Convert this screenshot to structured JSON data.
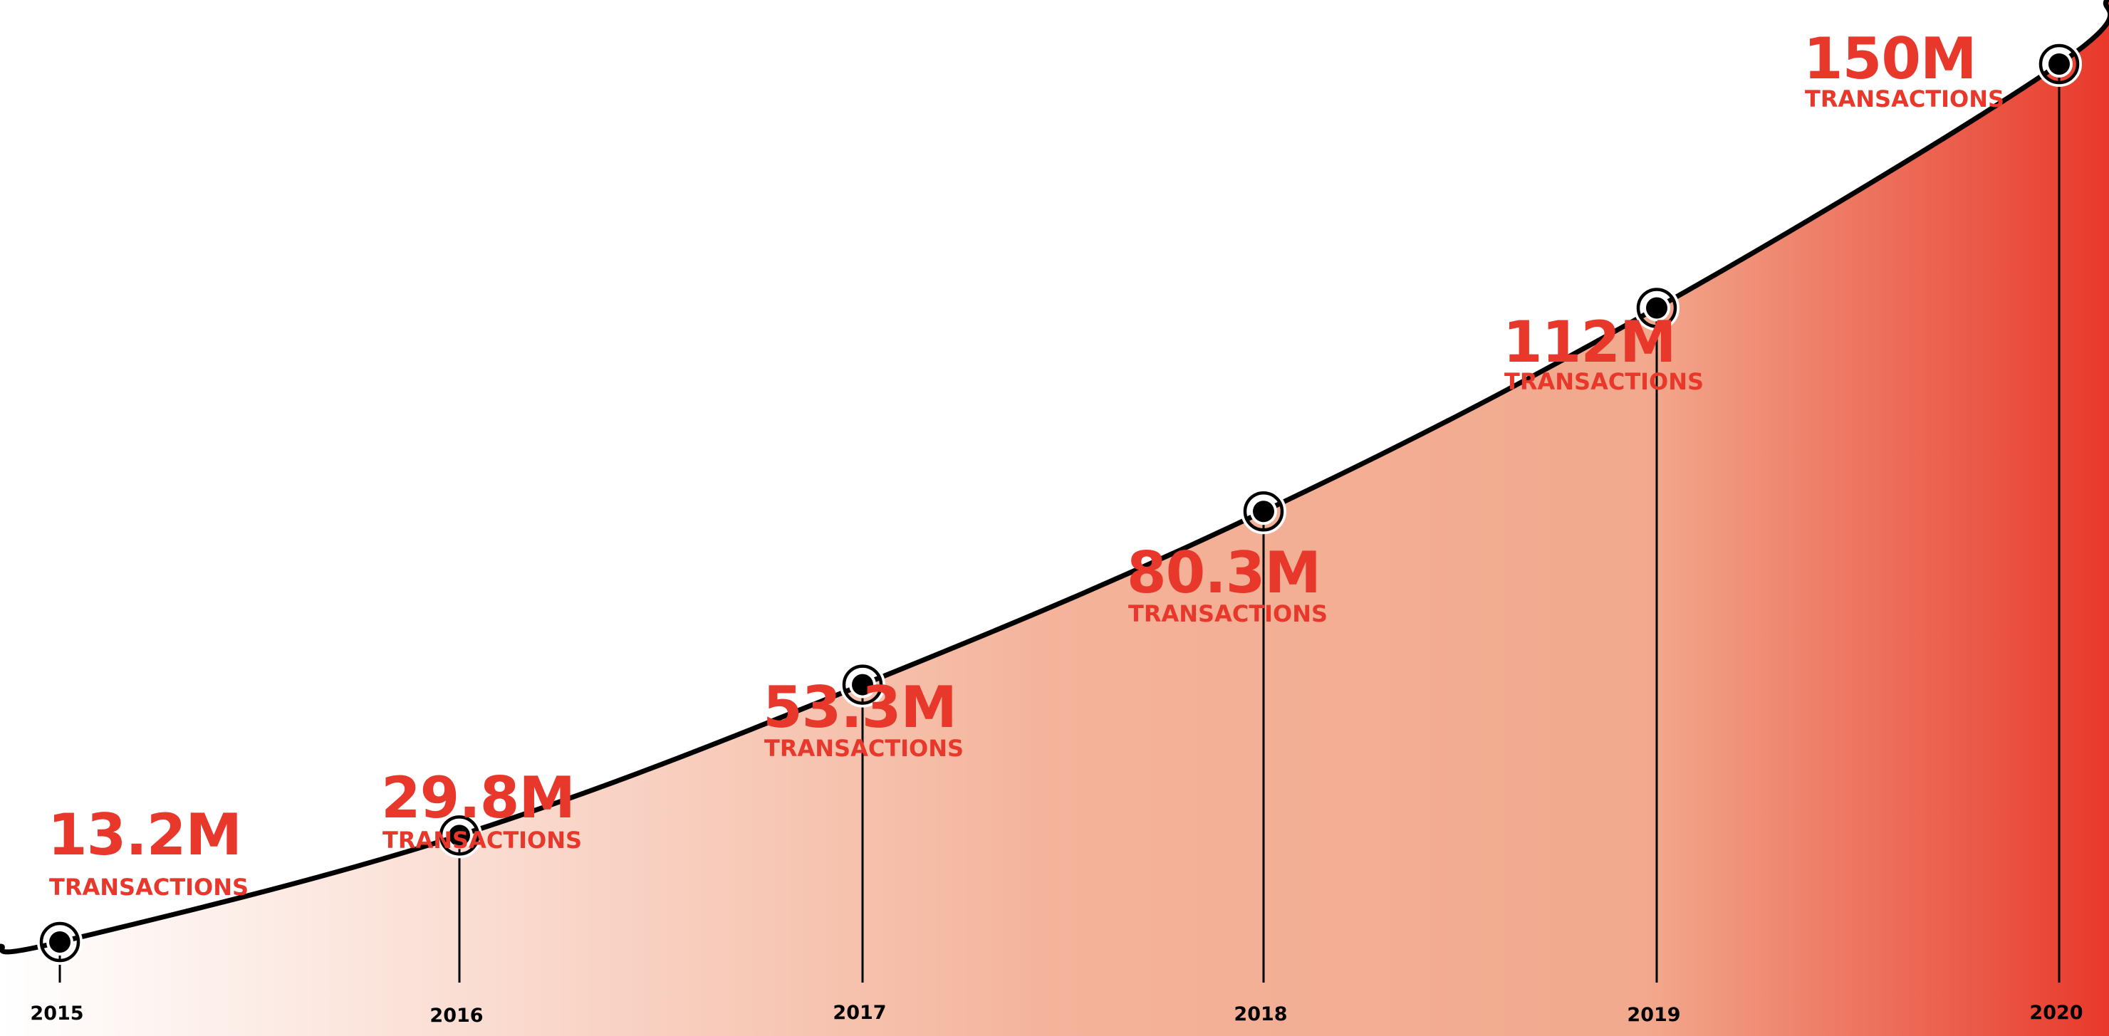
{
  "chart_data": {
    "type": "area",
    "x": [
      "2015",
      "2016",
      "2017",
      "2018",
      "2019",
      "2020"
    ],
    "series": [
      {
        "values": [
          13.2,
          29.8,
          53.3,
          80.3,
          112,
          150
        ],
        "labels": [
          "13.2M",
          "29.8M",
          "53.3M",
          "80.3M",
          "112M",
          "150M"
        ],
        "unit_label": "TRANSACTIONS"
      }
    ],
    "ylim": [
      0,
      150
    ],
    "grid": false,
    "legend": "none"
  },
  "colors": {
    "accent": "#e8382b",
    "line": "#000000",
    "fill_start": "#ffffff",
    "fill_mid": "#f4b39a",
    "fill_end": "#e8382b"
  }
}
